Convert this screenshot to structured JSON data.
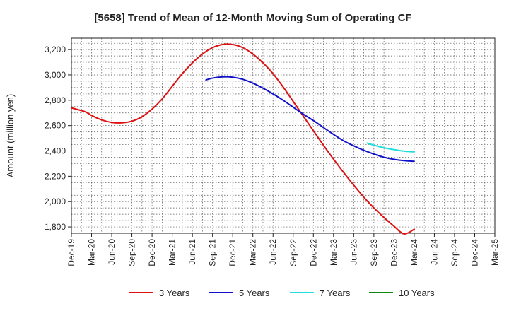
{
  "chart_data": {
    "type": "line",
    "title": "[5658]  Trend of Mean of 12-Month Moving Sum of Operating CF",
    "xlabel": "",
    "ylabel": "Amount (million yen)",
    "ylim": [
      1750,
      3290
    ],
    "yticks": [
      1800,
      2000,
      2200,
      2400,
      2600,
      2800,
      3000,
      3200
    ],
    "ytick_labels": [
      "1,800",
      "2,000",
      "2,200",
      "2,400",
      "2,600",
      "2,800",
      "3,000",
      "3,200"
    ],
    "x_categories": [
      "Dec-19",
      "Mar-20",
      "Jun-20",
      "Sep-20",
      "Dec-20",
      "Mar-21",
      "Jun-21",
      "Sep-21",
      "Dec-21",
      "Mar-22",
      "Jun-22",
      "Sep-22",
      "Dec-22",
      "Mar-23",
      "Jun-23",
      "Sep-23",
      "Dec-23",
      "Mar-24",
      "Jun-24",
      "Sep-24",
      "Dec-24",
      "Mar-25"
    ],
    "grid": true,
    "legend_position": "bottom",
    "series": [
      {
        "name": "3 Years",
        "color": "#dd1111",
        "x": [
          0,
          0.67,
          1,
          1.5,
          2,
          2.5,
          3,
          3.5,
          4,
          4.5,
          5,
          5.5,
          6,
          6.5,
          7,
          7.5,
          8,
          8.5,
          9,
          9.5,
          10,
          10.5,
          11,
          11.5,
          12,
          12.5,
          13,
          13.5,
          14,
          14.5,
          15,
          15.5,
          16,
          16.5,
          17
        ],
        "values": [
          2740,
          2710,
          2680,
          2645,
          2625,
          2622,
          2635,
          2670,
          2730,
          2810,
          2910,
          3010,
          3095,
          3165,
          3215,
          3240,
          3240,
          3215,
          3165,
          3095,
          3010,
          2905,
          2790,
          2675,
          2560,
          2445,
          2335,
          2230,
          2130,
          2035,
          1950,
          1875,
          1805,
          1745,
          1782
        ]
      },
      {
        "name": "5 Years",
        "color": "#1111cc",
        "x": [
          6.67,
          7,
          7.5,
          8,
          8.5,
          9,
          9.5,
          10,
          10.5,
          11,
          11.5,
          12,
          12.5,
          13,
          13.5,
          14,
          14.5,
          15,
          15.5,
          16,
          16.5,
          17
        ],
        "values": [
          2960,
          2975,
          2985,
          2982,
          2965,
          2935,
          2895,
          2850,
          2800,
          2745,
          2690,
          2640,
          2585,
          2530,
          2480,
          2440,
          2405,
          2375,
          2350,
          2333,
          2323,
          2318
        ]
      },
      {
        "name": "7 Years",
        "color": "#22dddd",
        "x": [
          14.67,
          15,
          15.5,
          16,
          16.5,
          17
        ],
        "values": [
          2462,
          2445,
          2425,
          2410,
          2398,
          2393
        ]
      },
      {
        "name": "10 Years",
        "color": "#118811",
        "x": [],
        "values": []
      }
    ]
  }
}
